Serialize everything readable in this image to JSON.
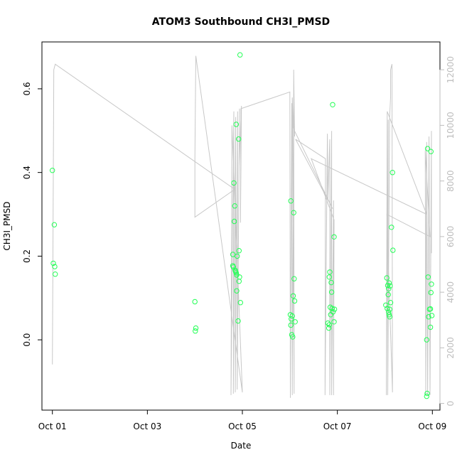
{
  "chart_data": {
    "type": "scatter",
    "title": "ATOM3 Southbound CH3I_PMSD",
    "xlabel": "Date",
    "ylabel": "CH3I_PMSD",
    "x_ticks": [
      "Oct 01",
      "Oct 03",
      "Oct 05",
      "Oct 07",
      "Oct 09"
    ],
    "y_ticks": [
      "0.0",
      "0.2",
      "0.4",
      "0.6"
    ],
    "y2_ticks": [
      "0",
      "2000",
      "4000",
      "6000",
      "8000",
      "10000",
      "12000"
    ],
    "xlim_days": [
      0.78,
      9.16
    ],
    "ylim": [
      -0.168,
      0.712
    ],
    "y2lim": [
      -240,
      13000
    ],
    "grid": false,
    "series": [
      {
        "color": "#22ff55",
        "points": [
          [
            1.0,
            0.405
          ],
          [
            1.04,
            0.275
          ],
          [
            1.02,
            0.183
          ],
          [
            1.05,
            0.175
          ],
          [
            1.06,
            0.157
          ],
          [
            4.0,
            0.091
          ],
          [
            4.02,
            0.028
          ],
          [
            4.01,
            0.021
          ],
          [
            4.82,
            0.375
          ],
          [
            4.84,
            0.32
          ],
          [
            4.83,
            0.283
          ],
          [
            4.8,
            0.204
          ],
          [
            4.8,
            0.177
          ],
          [
            4.81,
            0.174
          ],
          [
            4.86,
            0.163
          ],
          [
            4.87,
            0.16
          ],
          [
            4.88,
            0.155
          ],
          [
            4.85,
            0.166
          ],
          [
            4.89,
            0.2
          ],
          [
            4.87,
            0.515
          ],
          [
            4.95,
            0.681
          ],
          [
            4.92,
            0.48
          ],
          [
            4.93,
            0.213
          ],
          [
            4.94,
            0.15
          ],
          [
            4.93,
            0.14
          ],
          [
            4.88,
            0.117
          ],
          [
            4.96,
            0.089
          ],
          [
            4.91,
            0.045
          ],
          [
            6.02,
            0.332
          ],
          [
            6.08,
            0.304
          ],
          [
            6.09,
            0.146
          ],
          [
            6.07,
            0.105
          ],
          [
            6.1,
            0.093
          ],
          [
            6.01,
            0.06
          ],
          [
            6.05,
            0.057
          ],
          [
            6.03,
            0.05
          ],
          [
            6.11,
            0.043
          ],
          [
            6.02,
            0.035
          ],
          [
            6.04,
            0.012
          ],
          [
            6.06,
            0.007
          ],
          [
            6.9,
            0.562
          ],
          [
            6.93,
            0.246
          ],
          [
            6.84,
            0.162
          ],
          [
            6.83,
            0.15
          ],
          [
            6.87,
            0.137
          ],
          [
            6.88,
            0.114
          ],
          [
            6.85,
            0.078
          ],
          [
            6.89,
            0.075
          ],
          [
            6.94,
            0.073
          ],
          [
            6.91,
            0.067
          ],
          [
            6.86,
            0.06
          ],
          [
            6.8,
            0.04
          ],
          [
            6.83,
            0.036
          ],
          [
            6.82,
            0.028
          ],
          [
            6.93,
            0.043
          ],
          [
            8.16,
            0.4
          ],
          [
            8.14,
            0.269
          ],
          [
            8.17,
            0.214
          ],
          [
            8.04,
            0.148
          ],
          [
            8.09,
            0.136
          ],
          [
            8.06,
            0.13
          ],
          [
            8.11,
            0.129
          ],
          [
            8.08,
            0.122
          ],
          [
            8.07,
            0.108
          ],
          [
            8.12,
            0.089
          ],
          [
            8.02,
            0.083
          ],
          [
            8.05,
            0.075
          ],
          [
            8.08,
            0.066
          ],
          [
            8.1,
            0.073
          ],
          [
            8.09,
            0.06
          ],
          [
            8.1,
            0.055
          ],
          [
            8.9,
            0.457
          ],
          [
            8.97,
            0.45
          ],
          [
            8.91,
            0.15
          ],
          [
            8.98,
            0.133
          ],
          [
            8.97,
            0.113
          ],
          [
            8.94,
            0.073
          ],
          [
            8.96,
            0.074
          ],
          [
            8.99,
            0.058
          ],
          [
            8.92,
            0.055
          ],
          [
            8.96,
            0.03
          ],
          [
            8.88,
            0.0
          ],
          [
            8.89,
            -0.128
          ],
          [
            8.88,
            -0.135
          ]
        ]
      }
    ],
    "secondary_series": {
      "color": "#c8c8c8",
      "axis": "right",
      "points": [
        [
          1.0,
          1400
        ],
        [
          1.01,
          5000
        ],
        [
          1.03,
          12000
        ],
        [
          1.06,
          12200
        ],
        [
          4.84,
          7700
        ],
        [
          4.0,
          6700
        ],
        [
          4.0,
          8800
        ],
        [
          4.02,
          12500
        ],
        [
          5.0,
          400
        ],
        [
          4.78,
          10000
        ],
        [
          4.76,
          300
        ],
        [
          4.82,
          10500
        ],
        [
          4.81,
          350
        ],
        [
          4.86,
          10300
        ],
        [
          4.85,
          400
        ],
        [
          4.9,
          10500
        ],
        [
          4.89,
          500
        ],
        [
          4.94,
          10600
        ],
        [
          4.93,
          8500
        ],
        [
          4.98,
          10700
        ],
        [
          4.96,
          6500
        ],
        [
          4.97,
          10600
        ],
        [
          6.0,
          11200
        ],
        [
          6.01,
          200
        ],
        [
          6.04,
          10800
        ],
        [
          6.05,
          300
        ],
        [
          6.08,
          11500
        ],
        [
          6.1,
          9600
        ],
        [
          6.08,
          12000
        ],
        [
          6.09,
          350
        ],
        [
          6.05,
          11000
        ],
        [
          6.07,
          9900
        ],
        [
          6.9,
          7000
        ],
        [
          6.12,
          9500
        ],
        [
          6.75,
          8800
        ],
        [
          6.74,
          300
        ],
        [
          6.79,
          9700
        ],
        [
          6.8,
          7300
        ],
        [
          6.84,
          9500
        ],
        [
          6.84,
          300
        ],
        [
          6.88,
          9800
        ],
        [
          6.88,
          300
        ],
        [
          6.92,
          7300
        ],
        [
          6.92,
          300
        ],
        [
          6.93,
          6600
        ],
        [
          6.45,
          8800
        ],
        [
          8.88,
          6800
        ],
        [
          8.05,
          10500
        ],
        [
          8.03,
          300
        ],
        [
          8.07,
          10200
        ],
        [
          8.06,
          300
        ],
        [
          8.1,
          10300
        ],
        [
          8.12,
          11000
        ],
        [
          8.12,
          12000
        ],
        [
          8.15,
          12200
        ],
        [
          8.16,
          400
        ],
        [
          8.04,
          6800
        ],
        [
          8.95,
          6000
        ],
        [
          8.85,
          9100
        ],
        [
          8.86,
          300
        ],
        [
          8.88,
          9400
        ],
        [
          8.9,
          300
        ],
        [
          8.93,
          9600
        ],
        [
          8.95,
          300
        ],
        [
          8.98,
          9800
        ],
        [
          8.98,
          5400
        ]
      ]
    }
  }
}
